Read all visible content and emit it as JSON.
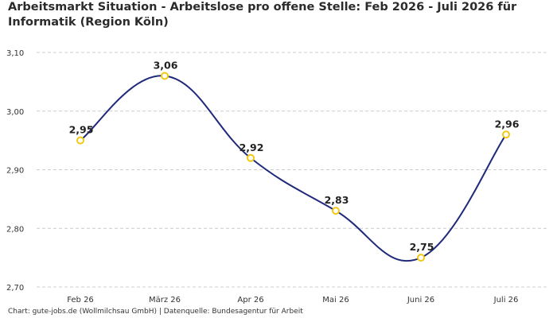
{
  "chart_data": {
    "type": "line",
    "title": "Arbeitsmarkt Situation - Arbeitslose pro offene Stelle: Feb 2026 - Juli 2026 für Informatik (Region Köln)",
    "categories": [
      "Feb 26",
      "März 26",
      "Apr 26",
      "Mai 26",
      "Juni 26",
      "Juli 26"
    ],
    "series": [
      {
        "values": [
          2.95,
          3.06,
          2.92,
          2.83,
          2.75,
          2.96
        ],
        "labels": [
          "2,95",
          "3,06",
          "2,92",
          "2,83",
          "2,75",
          "2,96"
        ]
      }
    ],
    "ylim": [
      2.7,
      3.1
    ],
    "yticks": [
      2.7,
      2.8,
      2.9,
      3.0,
      3.1
    ],
    "ytick_labels": [
      "2,70",
      "2,80",
      "2,90",
      "3,00",
      "3,10"
    ],
    "xlabel": "",
    "ylabel": "",
    "grid": true,
    "colors": {
      "line": "#1f2a7a",
      "marker_edge": "#f2c811",
      "marker_fill": "#ffffff",
      "grid": "#cccccc"
    }
  },
  "footer": {
    "source": "Chart: gute-jobs.de (Wollmilchsau GmbH) | Datenquelle: Bundesagentur für Arbeit"
  }
}
